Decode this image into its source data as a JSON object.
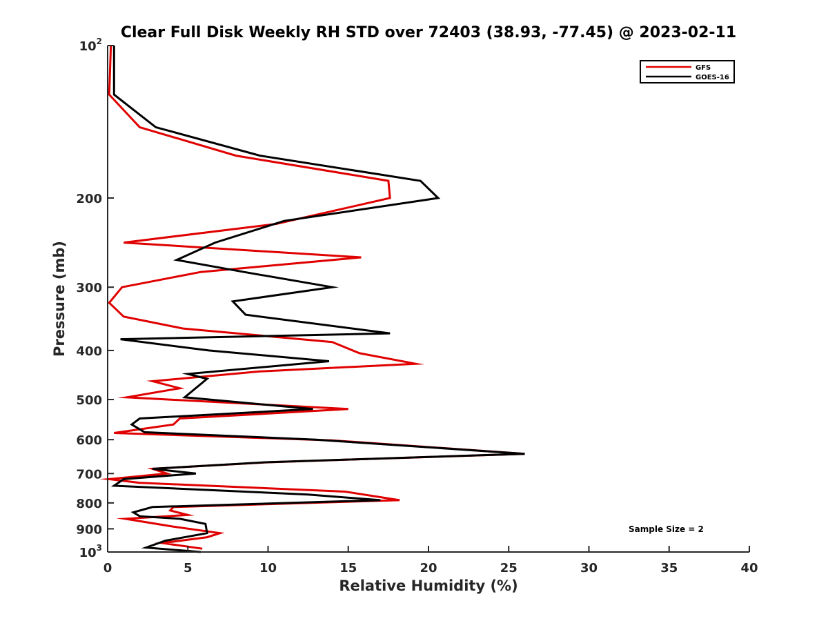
{
  "chart_data": {
    "type": "line",
    "title": "Clear Full Disk Weekly RH STD over 72403 (38.93, -77.45) @ 2023-02-11",
    "xlabel": "Relative Humidity (%)",
    "ylabel": "Pressure (mb)",
    "xlim": [
      0,
      40
    ],
    "ylim": [
      100,
      1000
    ],
    "y_scale": "log",
    "y_reversed": true,
    "x_ticks": [
      0,
      5,
      10,
      15,
      20,
      25,
      30,
      35,
      40
    ],
    "x_tick_labels": [
      "0",
      "5",
      "10",
      "15",
      "20",
      "25",
      "30",
      "35",
      "40"
    ],
    "y_ticks": [
      100,
      200,
      300,
      400,
      500,
      600,
      700,
      800,
      900,
      1000
    ],
    "y_tick_labels": [
      {
        "base": "10",
        "sup": "2"
      },
      {
        "base": "200",
        "sup": ""
      },
      {
        "base": "300",
        "sup": ""
      },
      {
        "base": "400",
        "sup": ""
      },
      {
        "base": "500",
        "sup": ""
      },
      {
        "base": "600",
        "sup": ""
      },
      {
        "base": "700",
        "sup": ""
      },
      {
        "base": "800",
        "sup": ""
      },
      {
        "base": "900",
        "sup": ""
      },
      {
        "base": "10",
        "sup": "3"
      }
    ],
    "grid": false,
    "legend_position": "top-right",
    "annotation": "Sample Size = 2",
    "series": [
      {
        "name": "GFS",
        "color": "#e00000",
        "points": [
          [
            0.2,
            100
          ],
          [
            0.1,
            125
          ],
          [
            2.0,
            145
          ],
          [
            8.0,
            165
          ],
          [
            17.5,
            185
          ],
          [
            17.6,
            200
          ],
          [
            10.5,
            225
          ],
          [
            1.0,
            245
          ],
          [
            15.8,
            262
          ],
          [
            5.8,
            280
          ],
          [
            0.9,
            300
          ],
          [
            0.1,
            322
          ],
          [
            1.0,
            343
          ],
          [
            4.7,
            362
          ],
          [
            14.0,
            385
          ],
          [
            15.7,
            405
          ],
          [
            19.2,
            425
          ],
          [
            9.5,
            440
          ],
          [
            2.8,
            460
          ],
          [
            4.5,
            475
          ],
          [
            1.2,
            495
          ],
          [
            15.0,
            522
          ],
          [
            4.5,
            545
          ],
          [
            4.1,
            560
          ],
          [
            0.4,
            582
          ],
          [
            14.0,
            602
          ],
          [
            26.0,
            640
          ],
          [
            10.0,
            665
          ],
          [
            2.8,
            685
          ],
          [
            3.7,
            700
          ],
          [
            0.1,
            718
          ],
          [
            2.0,
            730
          ],
          [
            14.8,
            760
          ],
          [
            18.2,
            790
          ],
          [
            4.1,
            815
          ],
          [
            3.9,
            828
          ],
          [
            5.0,
            845
          ],
          [
            1.1,
            860
          ],
          [
            4.0,
            890
          ],
          [
            7.0,
            918
          ],
          [
            6.2,
            935
          ],
          [
            3.4,
            960
          ],
          [
            5.9,
            985
          ]
        ]
      },
      {
        "name": "GOES-16",
        "color": "#000000",
        "points": [
          [
            0.4,
            100
          ],
          [
            0.4,
            125
          ],
          [
            3.0,
            145
          ],
          [
            9.5,
            165
          ],
          [
            19.5,
            185
          ],
          [
            20.6,
            200
          ],
          [
            11.0,
            222
          ],
          [
            6.7,
            245
          ],
          [
            4.3,
            265
          ],
          [
            8.5,
            280
          ],
          [
            14.0,
            300
          ],
          [
            7.8,
            320
          ],
          [
            8.6,
            340
          ],
          [
            17.6,
            370
          ],
          [
            0.8,
            380
          ],
          [
            6.3,
            400
          ],
          [
            13.8,
            420
          ],
          [
            5.0,
            445
          ],
          [
            6.2,
            455
          ],
          [
            4.8,
            495
          ],
          [
            12.8,
            522
          ],
          [
            2.0,
            545
          ],
          [
            1.5,
            560
          ],
          [
            2.3,
            580
          ],
          [
            13.0,
            600
          ],
          [
            26.0,
            640
          ],
          [
            9.8,
            665
          ],
          [
            2.8,
            685
          ],
          [
            5.5,
            700
          ],
          [
            1.0,
            718
          ],
          [
            0.4,
            740
          ],
          [
            12.5,
            770
          ],
          [
            17.0,
            790
          ],
          [
            2.8,
            815
          ],
          [
            1.6,
            835
          ],
          [
            2.0,
            850
          ],
          [
            4.5,
            860
          ],
          [
            6.1,
            880
          ],
          [
            6.2,
            918
          ],
          [
            3.6,
            950
          ],
          [
            2.4,
            980
          ],
          [
            5.8,
            1000
          ]
        ]
      }
    ]
  }
}
